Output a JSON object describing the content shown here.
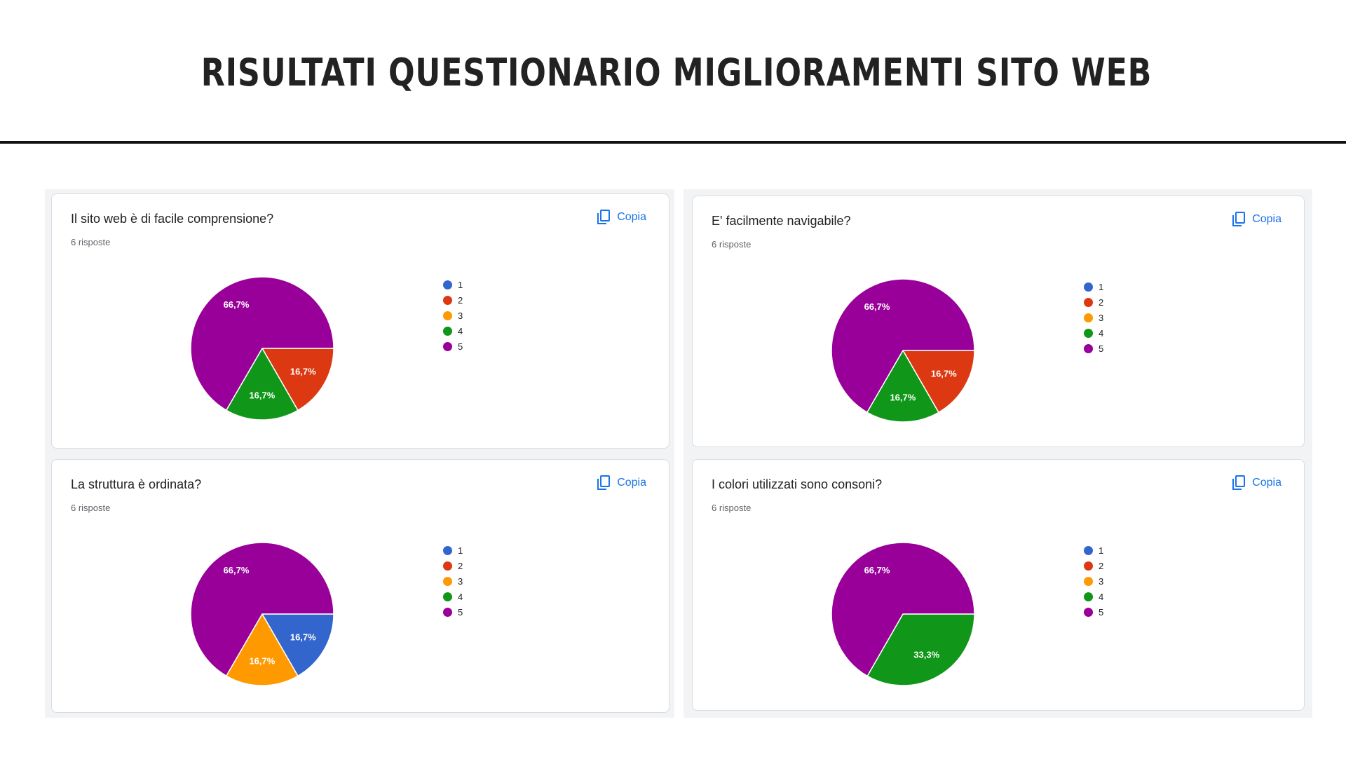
{
  "page": {
    "title": "RISULTATI QUESTIONARIO MIGLIORAMENTI SITO WEB"
  },
  "copy_label": "Copia",
  "colors": {
    "1": "#3366cc",
    "2": "#dc3912",
    "3": "#ff9900",
    "4": "#109618",
    "5": "#990099"
  },
  "chart_data": [
    {
      "type": "pie",
      "title": "Il sito web è di facile comprensione?",
      "subtitle": "6 risposte",
      "categories": [
        "1",
        "2",
        "3",
        "4",
        "5"
      ],
      "values": [
        0,
        16.7,
        0,
        16.7,
        66.7
      ],
      "labels": [
        "",
        "16,7%",
        "",
        "16,7%",
        "66,7%"
      ],
      "legend": "right"
    },
    {
      "type": "pie",
      "title": "E' facilmente navigabile?",
      "subtitle": "6 risposte",
      "categories": [
        "1",
        "2",
        "3",
        "4",
        "5"
      ],
      "values": [
        0,
        16.7,
        0,
        16.7,
        66.7
      ],
      "labels": [
        "",
        "16,7%",
        "",
        "16,7%",
        "66,7%"
      ],
      "legend": "right"
    },
    {
      "type": "pie",
      "title": "La struttura è ordinata?",
      "subtitle": "6 risposte",
      "categories": [
        "1",
        "2",
        "3",
        "4",
        "5"
      ],
      "values": [
        16.7,
        0,
        16.7,
        0,
        66.7
      ],
      "labels": [
        "16,7%",
        "",
        "16,7%",
        "",
        "66,7%"
      ],
      "legend": "right"
    },
    {
      "type": "pie",
      "title": "I colori utilizzati sono consoni?",
      "subtitle": "6 risposte",
      "categories": [
        "1",
        "2",
        "3",
        "4",
        "5"
      ],
      "values": [
        0,
        0,
        0,
        33.3,
        66.7
      ],
      "labels": [
        "",
        "",
        "",
        "33,3%",
        "66,7%"
      ],
      "legend": "right"
    }
  ]
}
